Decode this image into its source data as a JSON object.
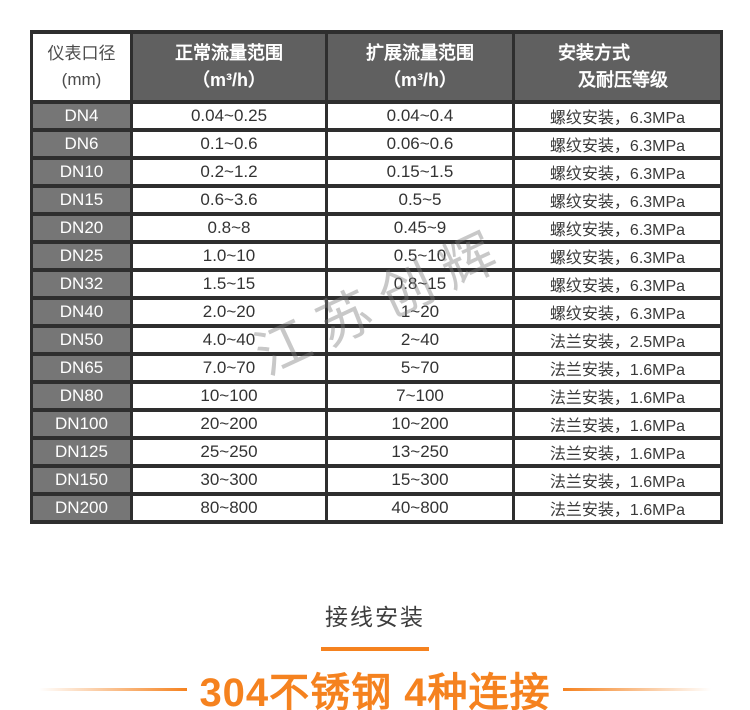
{
  "page": {
    "watermark": "江苏创辉"
  },
  "table": {
    "headers": [
      {
        "line1": "仪表口径",
        "line2": "(mm)"
      },
      {
        "line1": "正常流量范围",
        "line2": "（m³/h）"
      },
      {
        "line1": "扩展流量范围",
        "line2": "（m³/h）"
      },
      {
        "line1": "安装方式",
        "line2": "及耐压等级"
      }
    ],
    "rows": [
      [
        "DN4",
        "0.04~0.25",
        "0.04~0.4",
        "螺纹安装，6.3MPa"
      ],
      [
        "DN6",
        "0.1~0.6",
        "0.06~0.6",
        "螺纹安装，6.3MPa"
      ],
      [
        "DN10",
        "0.2~1.2",
        "0.15~1.5",
        "螺纹安装，6.3MPa"
      ],
      [
        "DN15",
        "0.6~3.6",
        "0.5~5",
        "螺纹安装，6.3MPa"
      ],
      [
        "DN20",
        "0.8~8",
        "0.45~9",
        "螺纹安装，6.3MPa"
      ],
      [
        "DN25",
        "1.0~10",
        "0.5~10",
        "螺纹安装，6.3MPa"
      ],
      [
        "DN32",
        "1.5~15",
        "0.8~15",
        "螺纹安装，6.3MPa"
      ],
      [
        "DN40",
        "2.0~20",
        "1~20",
        "螺纹安装，6.3MPa"
      ],
      [
        "DN50",
        "4.0~40",
        "2~40",
        "法兰安装，2.5MPa"
      ],
      [
        "DN65",
        "7.0~70",
        "5~70",
        "法兰安装，1.6MPa"
      ],
      [
        "DN80",
        "10~100",
        "7~100",
        "法兰安装，1.6MPa"
      ],
      [
        "DN100",
        "20~200",
        "10~200",
        "法兰安装，1.6MPa"
      ],
      [
        "DN125",
        "25~250",
        "13~250",
        "法兰安装，1.6MPa"
      ],
      [
        "DN150",
        "30~300",
        "15~300",
        "法兰安装，1.6MPa"
      ],
      [
        "DN200",
        "80~800",
        "40~800",
        "法兰安装，1.6MPa"
      ]
    ]
  },
  "footer": {
    "section_title": "接线安装",
    "headline": "304不锈钢 4种连接",
    "accent_color": "#f5821f"
  }
}
